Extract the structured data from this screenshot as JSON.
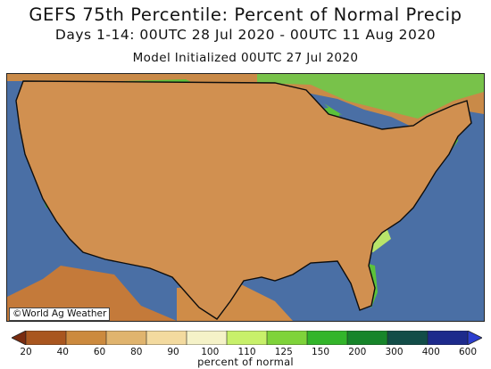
{
  "title": {
    "line1": "GEFS 75th Percentile: Percent of Normal Precip",
    "line2": "Days 1-14: 00UTC 28 Jul 2020 - 00UTC 11 Aug 2020",
    "line3": "Model Initialized 00UTC 27 Jul 2020"
  },
  "credit": "©World Ag Weather",
  "legend": {
    "label": "percent of normal",
    "ticks": [
      "20",
      "40",
      "60",
      "80",
      "90",
      "100",
      "110",
      "125",
      "150",
      "200",
      "300",
      "400",
      "600"
    ],
    "colors": [
      "#7a2c10",
      "#a9561f",
      "#cc8a3e",
      "#e0b46e",
      "#f3da9f",
      "#f5f2c8",
      "#c8f06a",
      "#7fd33a",
      "#33b52a",
      "#17852a",
      "#124d48",
      "#1d2a8c",
      "#2d3fcf"
    ]
  },
  "map": {
    "ocean_color": "#4a6fa5",
    "region_colors": {
      "dry_dark": "#8a3416",
      "dry": "#b45a22",
      "dry_light": "#cf8c48",
      "tan": "#e3b877",
      "near_normal": "#f1e7b8",
      "light_green": "#b9e46a",
      "green": "#5cc23a",
      "dark_green": "#1e8b2c",
      "wettest": "#1f3a8a"
    }
  }
}
